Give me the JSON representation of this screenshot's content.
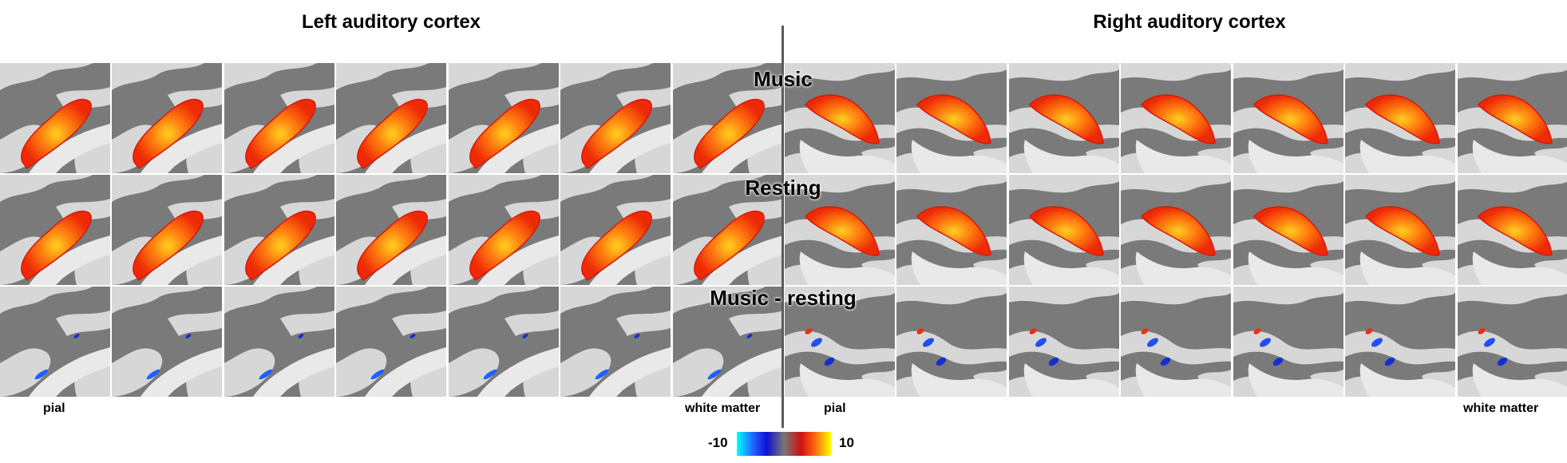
{
  "headers": {
    "left": "Left auditory cortex",
    "right": "Right auditory cortex"
  },
  "rows": [
    {
      "label": "Music"
    },
    {
      "label": "Resting"
    },
    {
      "label": "Music - resting"
    }
  ],
  "footers": {
    "left_first": "pial",
    "left_last": "white matter",
    "right_first": "pial",
    "right_last": "white matter"
  },
  "colorbar": {
    "min_label": "-10",
    "max_label": "10",
    "colors": [
      "#00ffff",
      "#2060ff",
      "#1010d0",
      "#777777",
      "#d01010",
      "#ff6010",
      "#ffff00"
    ]
  },
  "hemispheres": [
    {
      "side": "left",
      "panels_per_row": 7
    },
    {
      "side": "right",
      "panels_per_row": 7
    }
  ]
}
